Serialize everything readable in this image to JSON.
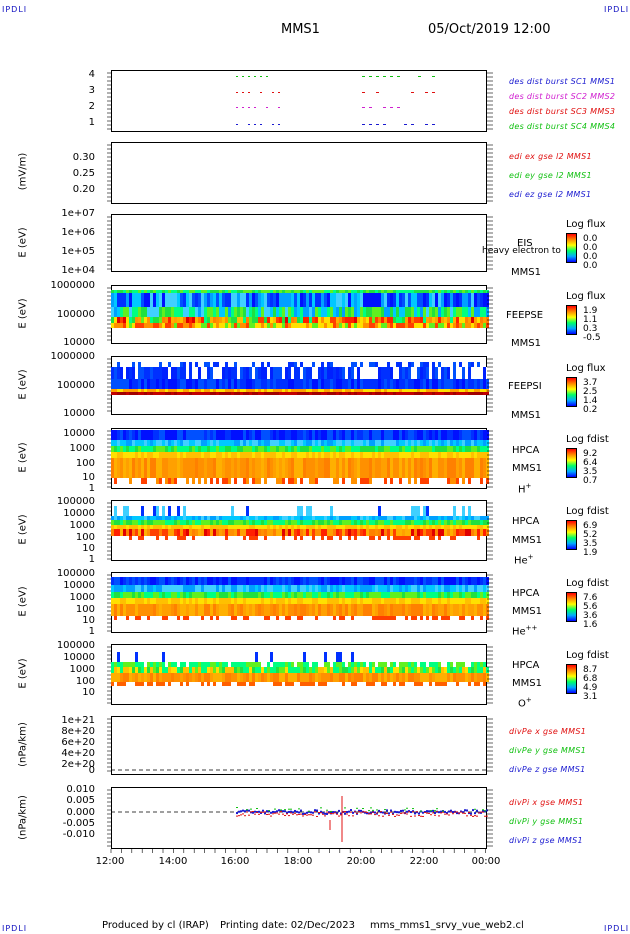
{
  "header": {
    "corner_left": "IPDLI",
    "corner_right": "IPDLI",
    "spacecraft": "MMS1",
    "date": "05/Oct/2019 12:00"
  },
  "footer": {
    "produced": "Produced by cl (IRAP)",
    "printing": "Printing date: 02/Dec/2023",
    "script": "mms_mms1_srvy_vue_web2.cl",
    "corner_left": "IPDLI",
    "corner_right": "IPDLI"
  },
  "colors": {
    "blue": "#1a1ad0",
    "magenta": "#d020d0",
    "red": "#e01010",
    "green": "#10c010"
  },
  "chart_data": [
    {
      "id": "burst",
      "type": "scatter",
      "yticks": [
        "4",
        "3",
        "2",
        "1"
      ],
      "series": [
        {
          "name": "des dist burst SC1 MMS1",
          "color": "#1a1ad0"
        },
        {
          "name": "des dist burst SC2 MMS2",
          "color": "#d020d0"
        },
        {
          "name": "des dist burst SC3 MMS3",
          "color": "#e01010"
        },
        {
          "name": "des dist burst SC4 MMS4",
          "color": "#10c010"
        }
      ]
    },
    {
      "id": "edi",
      "type": "line",
      "ylabel": "(mV/m)",
      "yticks": [
        "0.30",
        "0.25",
        "0.20"
      ],
      "series": [
        {
          "name": "edi ex gse l2 MMS1",
          "color": "#e01010"
        },
        {
          "name": "edi ey gse l2 MMS1",
          "color": "#10c010"
        },
        {
          "name": "edi ez gse l2 MMS1",
          "color": "#1a1ad0"
        }
      ]
    },
    {
      "id": "eis",
      "type": "heatmap",
      "ylabel": "E (eV)",
      "yticks": [
        "1e+07",
        "1e+06",
        "1e+05",
        "1e+04"
      ],
      "inst": "EIS",
      "inst2": "MMS1",
      "overlap": "heavy electron to",
      "cb_title": "Log flux",
      "cb_values": [
        "0.0",
        "0.0",
        "0.0",
        "0.0"
      ]
    },
    {
      "id": "feepse",
      "type": "heatmap",
      "ylabel": "E (eV)",
      "yticks": [
        "1000000",
        "100000",
        "10000"
      ],
      "inst": "FEEPSE",
      "inst2": "MMS1",
      "cb_title": "Log flux",
      "cb_values": [
        "1.9",
        "1.1",
        "0.3",
        "-0.5"
      ]
    },
    {
      "id": "feepsi",
      "type": "heatmap",
      "ylabel": "E (eV)",
      "yticks": [
        "1000000",
        "100000",
        "10000"
      ],
      "inst": "FEEPSI",
      "inst2": "MMS1",
      "cb_title": "Log flux",
      "cb_values": [
        "3.7",
        "2.5",
        "1.4",
        "0.2"
      ]
    },
    {
      "id": "hpca_h",
      "type": "heatmap",
      "ylabel": "E (eV)",
      "yticks": [
        "10000",
        "1000",
        "100",
        "10",
        "1"
      ],
      "inst": "HPCA",
      "inst2": "MMS1",
      "ion": "H",
      "ion_sup": "+",
      "cb_title": "Log fdist",
      "cb_values": [
        "9.2",
        "6.4",
        "3.5",
        "0.7"
      ]
    },
    {
      "id": "hpca_he",
      "type": "heatmap",
      "ylabel": "E (eV)",
      "yticks": [
        "100000",
        "10000",
        "1000",
        "100",
        "10",
        "1"
      ],
      "inst": "HPCA",
      "inst2": "MMS1",
      "ion": "He",
      "ion_sup": "+",
      "cb_title": "Log fdist",
      "cb_values": [
        "6.9",
        "5.2",
        "3.5",
        "1.9"
      ]
    },
    {
      "id": "hpca_he2",
      "type": "heatmap",
      "ylabel": "E (eV)",
      "yticks": [
        "100000",
        "10000",
        "1000",
        "100",
        "10",
        "1"
      ],
      "inst": "HPCA",
      "inst2": "MMS1",
      "ion": "He",
      "ion_sup": "++",
      "cb_title": "Log fdist",
      "cb_values": [
        "7.6",
        "5.6",
        "3.6",
        "1.6"
      ]
    },
    {
      "id": "hpca_o",
      "type": "heatmap",
      "ylabel": "E (eV)",
      "yticks": [
        "100000",
        "10000",
        "1000",
        "100",
        "10"
      ],
      "inst": "HPCA",
      "inst2": "MMS1",
      "ion": "O",
      "ion_sup": "+",
      "cb_title": "Log fdist",
      "cb_values": [
        "8.7",
        "6.8",
        "4.9",
        "3.1"
      ]
    },
    {
      "id": "divpe",
      "type": "line",
      "ylabel": "(nPa/km)",
      "yticks": [
        "1e+21",
        "8e+20",
        "6e+20",
        "4e+20",
        "2e+20",
        "0"
      ],
      "series": [
        {
          "name": "divPe x gse MMS1",
          "color": "#e01010"
        },
        {
          "name": "divPe y gse MMS1",
          "color": "#10c010"
        },
        {
          "name": "divPe z gse MMS1",
          "color": "#1a1ad0"
        }
      ]
    },
    {
      "id": "divpi",
      "type": "line",
      "ylabel": "(nPa/km)",
      "yticks": [
        "0.010",
        "0.005",
        "0.000",
        "-0.005",
        "-0.010"
      ],
      "series": [
        {
          "name": "divPi x gse MMS1",
          "color": "#e01010"
        },
        {
          "name": "divPi y gse MMS1",
          "color": "#10c010"
        },
        {
          "name": "divPi z gse MMS1",
          "color": "#1a1ad0"
        }
      ]
    }
  ],
  "x_axis": {
    "ticks": [
      "12:00",
      "14:00",
      "16:00",
      "18:00",
      "20:00",
      "22:00",
      "00:00"
    ]
  }
}
